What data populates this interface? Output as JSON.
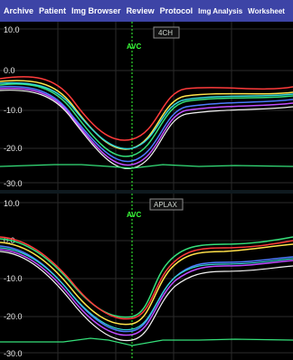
{
  "menu": {
    "items": [
      {
        "label": "Archive"
      },
      {
        "label": "Patient"
      },
      {
        "label": "Img Browser"
      },
      {
        "label": "Review"
      },
      {
        "label": "Protocol"
      },
      {
        "label": "Img Analysis"
      },
      {
        "label": "Worksheet"
      }
    ]
  },
  "panels": {
    "top": {
      "tag": "4CH",
      "marker": "AVC",
      "yticks": [
        "10.0",
        "0.0",
        "-10.0",
        "-20.0",
        "-30.0"
      ]
    },
    "bottom": {
      "tag": "APLAX",
      "marker": "AVC",
      "yticks": [
        "10.0",
        "0.0",
        "-10.0",
        "-20.0",
        "-30.0"
      ]
    }
  },
  "colors": {
    "menu_bg": "#3d44a6",
    "trace_red": "#ff3b3b",
    "trace_yellow": "#ffe24a",
    "trace_green": "#35e07a",
    "trace_blue": "#4d7bff",
    "trace_purple": "#c04dff",
    "trace_cyan": "#33d6d6",
    "trace_white": "#f2f2f2",
    "avc": "#39ff39"
  }
}
